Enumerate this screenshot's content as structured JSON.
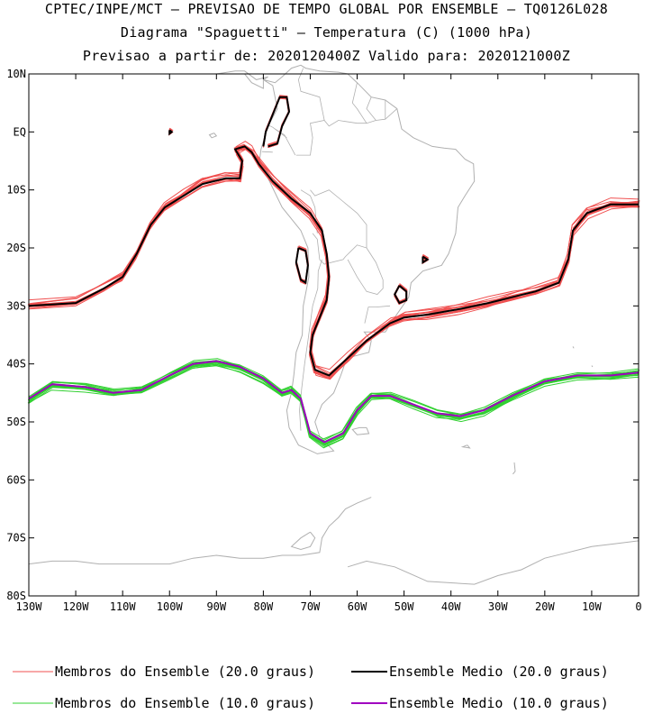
{
  "header": {
    "line1": "CPTEC/INPE/MCT — PREVISAO DE TEMPO GLOBAL POR ENSEMBLE — TQ0126L028",
    "line2": "Diagrama \"Spaguetti\" — Temperatura (C) (1000 hPa)",
    "line3": "Previsao a partir de: 2020120400Z   Valido para: 2020121000Z"
  },
  "chart_data": {
    "type": "line",
    "title": "Diagrama \"Spaguetti\" — Temperatura (C) (1000 hPa)",
    "xlabel": "",
    "ylabel": "",
    "xlim": [
      -130,
      0
    ],
    "ylim": [
      -80,
      10
    ],
    "x_ticks": [
      {
        "value": -130,
        "label": "130W"
      },
      {
        "value": -120,
        "label": "120W"
      },
      {
        "value": -110,
        "label": "110W"
      },
      {
        "value": -100,
        "label": "100W"
      },
      {
        "value": -90,
        "label": "90W"
      },
      {
        "value": -80,
        "label": "80W"
      },
      {
        "value": -70,
        "label": "70W"
      },
      {
        "value": -60,
        "label": "60W"
      },
      {
        "value": -50,
        "label": "50W"
      },
      {
        "value": -40,
        "label": "40W"
      },
      {
        "value": -30,
        "label": "30W"
      },
      {
        "value": -20,
        "label": "20W"
      },
      {
        "value": -10,
        "label": "10W"
      },
      {
        "value": 0,
        "label": "0"
      }
    ],
    "y_ticks": [
      {
        "value": 10,
        "label": "10N"
      },
      {
        "value": 0,
        "label": "EQ"
      },
      {
        "value": -10,
        "label": "10S"
      },
      {
        "value": -20,
        "label": "20S"
      },
      {
        "value": -30,
        "label": "30S"
      },
      {
        "value": -40,
        "label": "40S"
      },
      {
        "value": -50,
        "label": "50S"
      },
      {
        "value": -60,
        "label": "60S"
      },
      {
        "value": -70,
        "label": "70S"
      },
      {
        "value": -80,
        "label": "80S"
      }
    ],
    "colors": {
      "members_20": "#f05050",
      "mean_20": "#000000",
      "members_10": "#30d030",
      "mean_10": "#a000c0",
      "coast": "#b0b0b0"
    },
    "series": [
      {
        "name": "Ensemble Medio (20.0 graus)",
        "role": "mean_20",
        "segments": [
          [
            [
              -130,
              -30
            ],
            [
              -120,
              -29.5
            ],
            [
              -114,
              -27
            ],
            [
              -110,
              -25
            ],
            [
              -107,
              -21
            ],
            [
              -104,
              -16
            ],
            [
              -101,
              -13
            ],
            [
              -97,
              -11
            ],
            [
              -93,
              -9
            ],
            [
              -88,
              -8
            ],
            [
              -85,
              -8
            ],
            [
              -84.5,
              -5
            ],
            [
              -86,
              -3
            ],
            [
              -84,
              -2.5
            ],
            [
              -82.5,
              -3.5
            ],
            [
              -81,
              -5.5
            ],
            [
              -78,
              -8.5
            ],
            [
              -74,
              -11.5
            ],
            [
              -70,
              -14
            ],
            [
              -67.5,
              -17
            ],
            [
              -66.5,
              -21
            ],
            [
              -66,
              -25
            ],
            [
              -66.5,
              -29
            ],
            [
              -68,
              -32
            ],
            [
              -69.5,
              -35
            ],
            [
              -70,
              -38
            ],
            [
              -69,
              -41
            ],
            [
              -66,
              -42
            ],
            [
              -62,
              -39
            ],
            [
              -58,
              -36
            ],
            [
              -53,
              -33
            ],
            [
              -50,
              -32
            ],
            [
              -45,
              -31.5
            ],
            [
              -38,
              -30.5
            ],
            [
              -32,
              -29.5
            ],
            [
              -27,
              -28.5
            ],
            [
              -22,
              -27.5
            ],
            [
              -17,
              -26
            ],
            [
              -15,
              -22
            ],
            [
              -14,
              -17
            ],
            [
              -11,
              -14
            ],
            [
              -6,
              -12.5
            ],
            [
              0,
              -12.5
            ]
          ],
          [
            [
              -80,
              -2.5
            ],
            [
              -79.5,
              0
            ],
            [
              -77.5,
              4
            ],
            [
              -76.5,
              6
            ],
            [
              -75,
              6
            ],
            [
              -74.5,
              3.5
            ],
            [
              -76,
              1
            ],
            [
              -77,
              -2
            ],
            [
              -79,
              -2.5
            ]
          ],
          [
            [
              -72.5,
              -20
            ],
            [
              -71,
              -20.5
            ],
            [
              -70.5,
              -23
            ],
            [
              -71,
              -26
            ],
            [
              -72,
              -25.5
            ],
            [
              -73,
              -22.5
            ],
            [
              -72.5,
              -20
            ]
          ],
          [
            [
              -51,
              -26.5
            ],
            [
              -49.5,
              -27.5
            ],
            [
              -49.5,
              -29
            ],
            [
              -51,
              -29.5
            ],
            [
              -52,
              -28
            ],
            [
              -51,
              -26.5
            ]
          ],
          [
            [
              -46,
              -21.5
            ],
            [
              -45,
              -22
            ],
            [
              -46,
              -22.5
            ],
            [
              -46,
              -21.5
            ]
          ],
          [
            [
              -100,
              0.3
            ],
            [
              -99.5,
              0
            ],
            [
              -100,
              -0.3
            ],
            [
              -100,
              0.3
            ]
          ]
        ]
      },
      {
        "name": "Ensemble Medio (10.0 graus)",
        "role": "mean_10",
        "segments": [
          [
            [
              -130,
              -46
            ],
            [
              -125,
              -43.5
            ],
            [
              -118,
              -44
            ],
            [
              -112,
              -45
            ],
            [
              -106,
              -44.5
            ],
            [
              -100,
              -42
            ],
            [
              -95,
              -40
            ],
            [
              -90,
              -39.5
            ],
            [
              -85,
              -40.5
            ],
            [
              -80,
              -42.5
            ],
            [
              -76,
              -45
            ],
            [
              -74,
              -44.5
            ],
            [
              -72,
              -46
            ],
            [
              -71,
              -49
            ],
            [
              -70,
              -52
            ],
            [
              -67,
              -53.5
            ],
            [
              -63,
              -52
            ],
            [
              -60,
              -48
            ],
            [
              -57,
              -45.5
            ],
            [
              -53,
              -45.5
            ],
            [
              -48,
              -47
            ],
            [
              -43,
              -48.5
            ],
            [
              -38,
              -49
            ],
            [
              -33,
              -48
            ],
            [
              -27,
              -45.5
            ],
            [
              -20,
              -43
            ],
            [
              -13,
              -42
            ],
            [
              -6,
              -42
            ],
            [
              0,
              -41.5
            ]
          ]
        ]
      }
    ],
    "member_groups": [
      {
        "name": "Membros do Ensemble (20.0 graus)",
        "role": "members_20",
        "follows": "Ensemble Medio (20.0 graus)",
        "count": 14
      },
      {
        "name": "Membros do Ensemble (10.0 graus)",
        "role": "members_10",
        "follows": "Ensemble Medio (10.0 graus)",
        "count": 14
      }
    ],
    "grid": false,
    "legend_placement": "bottom"
  },
  "legend": {
    "items": [
      {
        "label": "Membros do Ensemble (20.0 graus)",
        "color": "#f05050"
      },
      {
        "label": "Ensemble Medio (20.0 graus)",
        "color": "#000000"
      },
      {
        "label": "Membros do Ensemble (10.0 graus)",
        "color": "#30d030"
      },
      {
        "label": "Ensemble Medio (10.0 graus)",
        "color": "#a000c0"
      }
    ]
  }
}
